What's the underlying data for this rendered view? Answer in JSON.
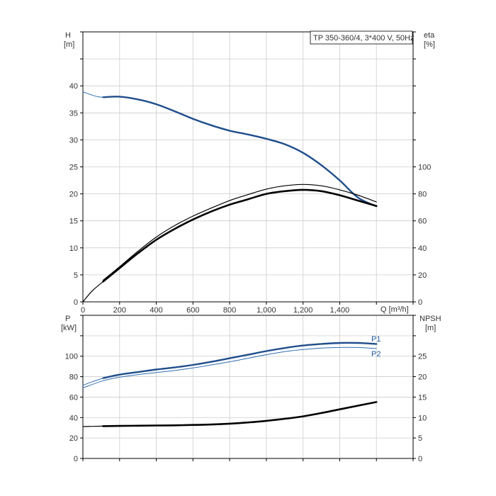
{
  "colors": {
    "blue": "#1f4e8c",
    "blue_light": "#2f6db0",
    "black": "#000000",
    "grid": "#cccccc",
    "axis": "#000000"
  },
  "chart_data": [
    {
      "type": "line",
      "title": "TP 350-360/4, 3*400 V, 50Hz",
      "xlabel": "Q [m³/h]",
      "x_ticks": [
        "0",
        "200",
        "400",
        "600",
        "800",
        "1,000",
        "1,200",
        "1,400"
      ],
      "xlim": [
        0,
        1800
      ],
      "y_left": {
        "label_top": "H",
        "label_unit": "[m]",
        "ticks": [
          "0",
          "5",
          "10",
          "15",
          "20",
          "25",
          "30",
          "35",
          "40"
        ],
        "ylim": [
          0,
          50
        ]
      },
      "y_right": {
        "label_top": "eta",
        "label_unit": "[%]",
        "ticks": [
          "0",
          "20",
          "40",
          "60",
          "80",
          "100"
        ],
        "ylim": [
          0,
          200
        ]
      },
      "grid": true,
      "series": [
        {
          "key": "H_main",
          "axis": "left",
          "style": "thick-blue",
          "x": [
            110,
            200,
            300,
            400,
            500,
            600,
            700,
            800,
            900,
            1000,
            1100,
            1200,
            1300,
            1400,
            1500,
            1600
          ],
          "y": [
            37.9,
            38.0,
            37.5,
            36.6,
            35.3,
            33.9,
            32.7,
            31.7,
            31.0,
            30.2,
            29.2,
            27.6,
            25.3,
            22.5,
            19.3,
            17.7
          ]
        },
        {
          "key": "H_ext",
          "axis": "left",
          "style": "thin-blue",
          "x": [
            0,
            40,
            80,
            110
          ],
          "y": [
            38.9,
            38.4,
            38.0,
            37.9
          ]
        },
        {
          "key": "eta_main",
          "axis": "right",
          "style": "thick-black",
          "x": [
            110,
            200,
            300,
            400,
            500,
            600,
            700,
            800,
            900,
            1000,
            1100,
            1200,
            1300,
            1400,
            1500,
            1600
          ],
          "y": [
            15,
            25,
            36,
            46,
            54,
            61,
            67,
            72,
            76,
            80,
            82,
            83,
            82,
            79,
            75,
            71
          ]
        },
        {
          "key": "eta_ext",
          "axis": "right",
          "style": "thin-black",
          "x": [
            0,
            50,
            110
          ],
          "y": [
            0,
            8,
            15
          ]
        },
        {
          "key": "eta_upper",
          "axis": "right",
          "style": "thin-black",
          "x": [
            110,
            200,
            300,
            400,
            500,
            600,
            700,
            800,
            900,
            1000,
            1100,
            1200,
            1300,
            1400,
            1500,
            1600
          ],
          "y": [
            16,
            26,
            37.5,
            48,
            56.5,
            63.5,
            69.5,
            75,
            79.5,
            83.5,
            86,
            87,
            86,
            83,
            79,
            74
          ]
        }
      ]
    },
    {
      "type": "line",
      "xlim": [
        0,
        1800
      ],
      "y_left": {
        "label_top": "P",
        "label_unit": "[kW]",
        "ticks": [
          "0",
          "20",
          "40",
          "60",
          "80",
          "100"
        ],
        "ylim": [
          0,
          140
        ]
      },
      "y_right": {
        "label_top": "NPSH",
        "label_unit": "[m]",
        "ticks": [
          "0",
          "5",
          "10",
          "15",
          "20",
          "25"
        ],
        "ylim": [
          0,
          35
        ]
      },
      "grid": true,
      "series": [
        {
          "key": "P1",
          "name": "P1",
          "axis": "left",
          "style": "thick-blue",
          "x": [
            110,
            200,
            300,
            400,
            500,
            600,
            700,
            800,
            900,
            1000,
            1100,
            1200,
            1300,
            1400,
            1500,
            1600
          ],
          "y": [
            78.5,
            82,
            84.5,
            87,
            89,
            91.5,
            94.5,
            98,
            101.5,
            105,
            108,
            110.5,
            112,
            113,
            113,
            112
          ]
        },
        {
          "key": "P1_ext",
          "axis": "left",
          "style": "thin-blue",
          "x": [
            0,
            50,
            110
          ],
          "y": [
            71.5,
            75,
            78.5
          ]
        },
        {
          "key": "P2",
          "name": "P2",
          "axis": "left",
          "style": "thin-blue",
          "x": [
            0,
            110,
            200,
            300,
            400,
            500,
            600,
            700,
            800,
            900,
            1000,
            1100,
            1200,
            1300,
            1400,
            1500,
            1600
          ],
          "y": [
            69,
            76,
            79.5,
            82,
            84,
            86,
            88.5,
            91.5,
            94.5,
            98,
            101.5,
            104.5,
            106.5,
            108,
            108.5,
            108.5,
            107.5
          ]
        },
        {
          "key": "NPSH_main",
          "axis": "right",
          "style": "thick-black",
          "x": [
            110,
            200,
            300,
            400,
            500,
            600,
            700,
            800,
            900,
            1000,
            1100,
            1200,
            1300,
            1400,
            1500,
            1600
          ],
          "y": [
            7.9,
            7.95,
            8.0,
            8.05,
            8.1,
            8.2,
            8.3,
            8.5,
            8.8,
            9.2,
            9.7,
            10.3,
            11.1,
            12.0,
            12.9,
            13.8
          ]
        },
        {
          "key": "NPSH_ext",
          "axis": "right",
          "style": "thin-black",
          "x": [
            0,
            110
          ],
          "y": [
            7.8,
            7.9
          ]
        }
      ]
    }
  ]
}
